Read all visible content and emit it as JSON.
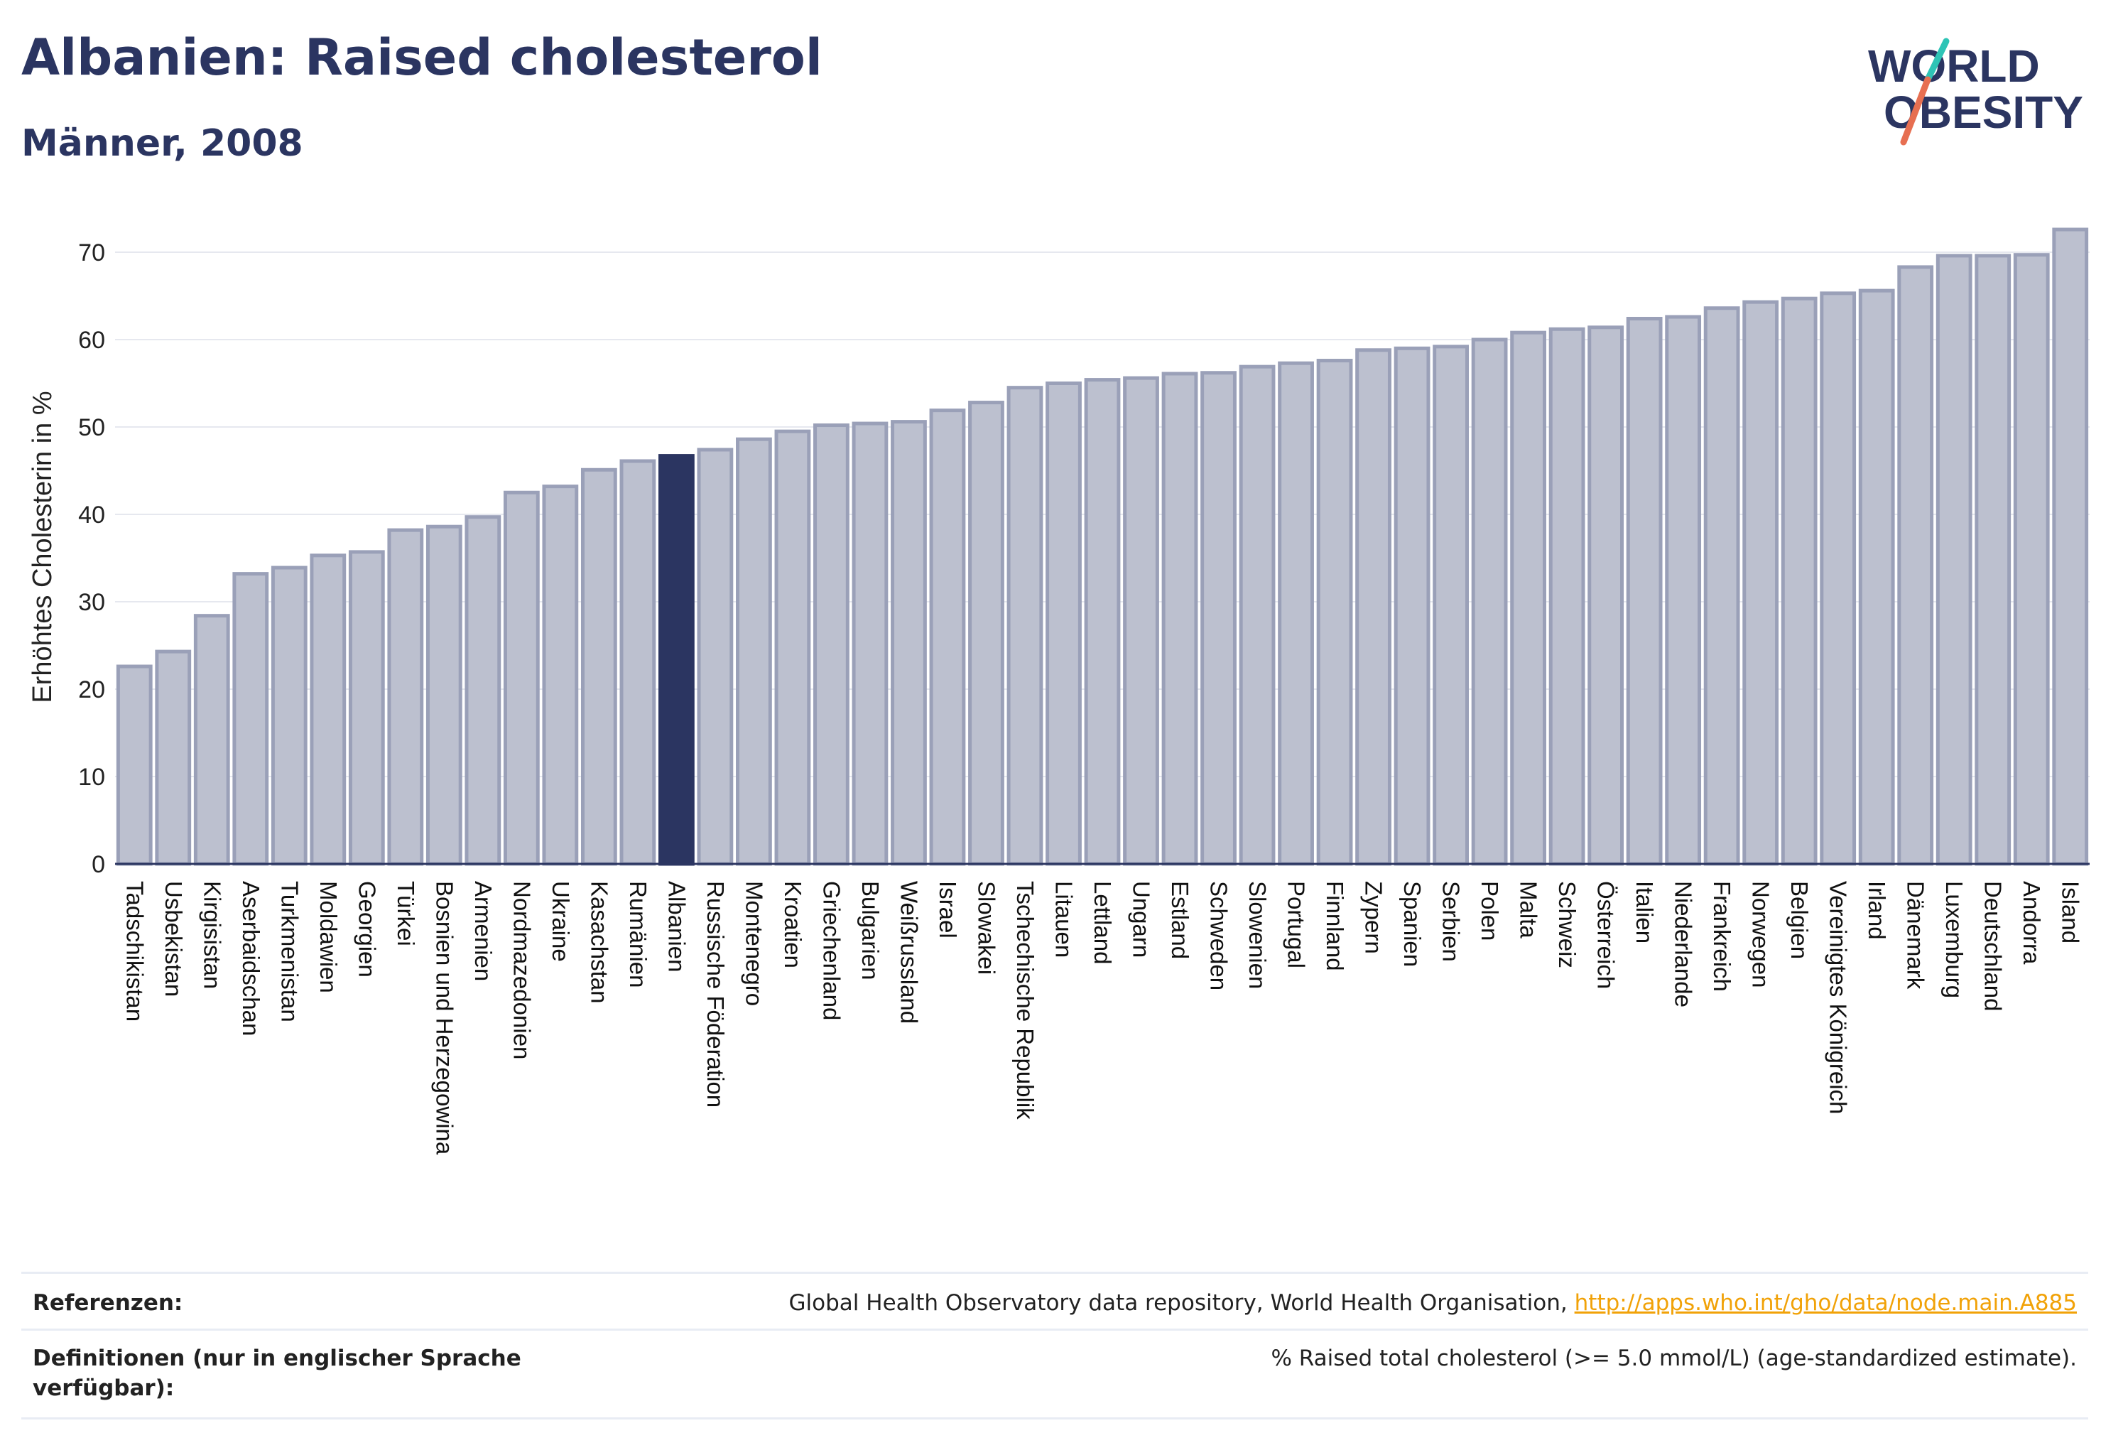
{
  "header": {
    "title": "Albanien: Raised cholesterol",
    "subtitle": "Männer, 2008"
  },
  "logo": {
    "line1": "WORLD",
    "line2": "OBESITY",
    "colors": {
      "text": "#2b3561",
      "slash_teal": "#2ec4b6",
      "slash_coral": "#e76f51"
    }
  },
  "chart_data": {
    "type": "bar",
    "ylabel": "Erhöhtes Cholesterin in %",
    "ylim": [
      0,
      75
    ],
    "yticks": [
      0,
      10,
      20,
      30,
      40,
      50,
      60,
      70
    ],
    "grid": true,
    "highlight": "Albanien",
    "colors": {
      "bar": "#bcc0cf",
      "bar_stroke": "#9aa0b8",
      "highlight": "#2b3561",
      "grid": "#e6e8ef",
      "axis": "#2b3561"
    },
    "categories": [
      "Tadschikistan",
      "Usbekistan",
      "Kirgisistan",
      "Aserbaidschan",
      "Turkmenistan",
      "Moldawien",
      "Georgien",
      "Türkei",
      "Bosnien und Herzegowina",
      "Armenien",
      "Nordmazedonien",
      "Ukraine",
      "Kasachstan",
      "Rumänien",
      "Albanien",
      "Russische Föderation",
      "Montenegro",
      "Kroatien",
      "Griechenland",
      "Bulgarien",
      "Weißrussland",
      "Israel",
      "Slowakei",
      "Tschechische Republik",
      "Litauen",
      "Lettland",
      "Ungarn",
      "Estland",
      "Schweden",
      "Slowenien",
      "Portugal",
      "Finnland",
      "Zypern",
      "Spanien",
      "Serbien",
      "Polen",
      "Malta",
      "Schweiz",
      "Österreich",
      "Italien",
      "Niederlande",
      "Frankreich",
      "Norwegen",
      "Belgien",
      "Vereinigtes Königreich",
      "Irland",
      "Dänemark",
      "Luxemburg",
      "Deutschland",
      "Andorra",
      "Island"
    ],
    "values": [
      22.6,
      24.3,
      28.4,
      33.2,
      33.9,
      35.3,
      35.7,
      38.2,
      38.6,
      39.7,
      42.5,
      43.2,
      45.1,
      46.1,
      46.7,
      47.4,
      48.6,
      49.5,
      50.2,
      50.4,
      50.6,
      51.9,
      52.8,
      54.5,
      55.0,
      55.4,
      55.6,
      56.1,
      56.2,
      56.9,
      57.3,
      57.6,
      58.8,
      59.0,
      59.2,
      60.0,
      60.8,
      61.2,
      61.4,
      62.4,
      62.6,
      63.6,
      64.3,
      64.7,
      65.3,
      65.6,
      68.3,
      69.6,
      69.6,
      69.7,
      72.6
    ]
  },
  "footer": {
    "references_label": "Referenzen:",
    "references_text": "Global Health Observatory data repository, World Health Organisation, ",
    "references_link": "http://apps.who.int/gho/data/node.main.A885",
    "definitions_label_line1": "Definitionen (nur in englischer Sprache",
    "definitions_label_line2": "verfügbar):",
    "definitions_text": "% Raised total cholesterol (>= 5.0 mmol/L) (age-standardized estimate)."
  }
}
